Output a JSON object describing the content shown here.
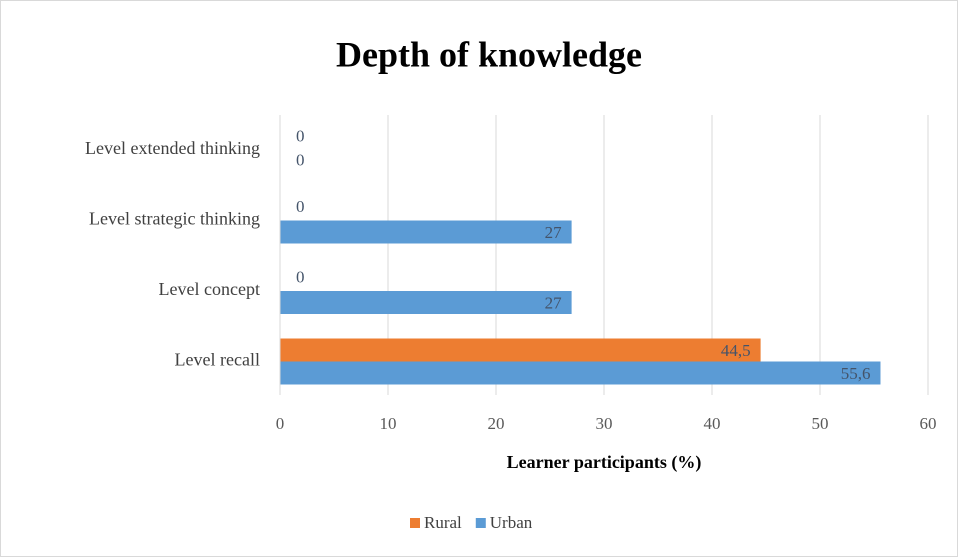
{
  "chart_data": {
    "type": "hbar",
    "title": "Depth of knowledge",
    "x_label": "Learner participants (%)",
    "categories": [
      "Level extended thinking",
      "Level strategic thinking",
      "Level concept",
      "Level recall"
    ],
    "series": [
      {
        "name": "Rural",
        "color": "#ed7d31",
        "values": [
          0,
          0,
          0,
          44.5
        ],
        "value_labels": [
          "0",
          "0",
          "0",
          "44,5"
        ]
      },
      {
        "name": "Urban",
        "color": "#5b9bd5",
        "values": [
          0,
          27,
          27,
          55.6
        ],
        "value_labels": [
          "0",
          "27",
          "27",
          "55,6"
        ]
      }
    ],
    "xlim": [
      0,
      60
    ],
    "xticks": [
      0,
      10,
      20,
      30,
      40,
      50,
      60
    ],
    "grid": true,
    "legend": "bottom"
  }
}
